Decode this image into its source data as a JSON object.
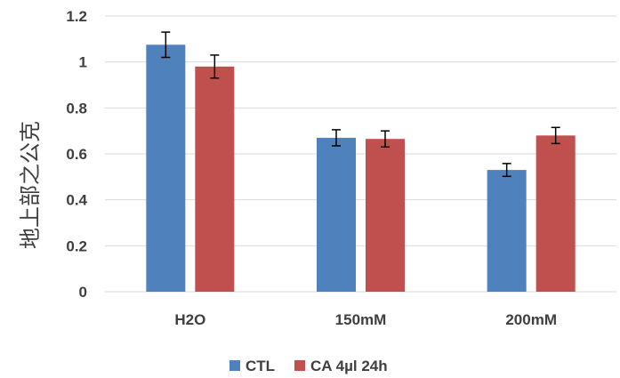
{
  "chart_data": {
    "type": "bar",
    "title": "",
    "xlabel": "",
    "ylabel": "地上部之公克",
    "categories": [
      "H2O",
      "150mM",
      "200mM"
    ],
    "series": [
      {
        "name": "CTL",
        "color": "#4f81bd",
        "values": [
          1.075,
          0.67,
          0.53
        ],
        "errors": [
          0.055,
          0.035,
          0.028
        ]
      },
      {
        "name": "CA 4µl 24h",
        "color": "#c0504d",
        "values": [
          0.98,
          0.665,
          0.68
        ],
        "errors": [
          0.05,
          0.035,
          0.035
        ]
      }
    ],
    "ylim": [
      0,
      1.2
    ],
    "yticks": [
      "0",
      "0.2",
      "0.4",
      "0.6",
      "0.8",
      "1",
      "1.2"
    ],
    "grid": true,
    "gridColor": "#d9d9d9",
    "legend": "bottom"
  }
}
